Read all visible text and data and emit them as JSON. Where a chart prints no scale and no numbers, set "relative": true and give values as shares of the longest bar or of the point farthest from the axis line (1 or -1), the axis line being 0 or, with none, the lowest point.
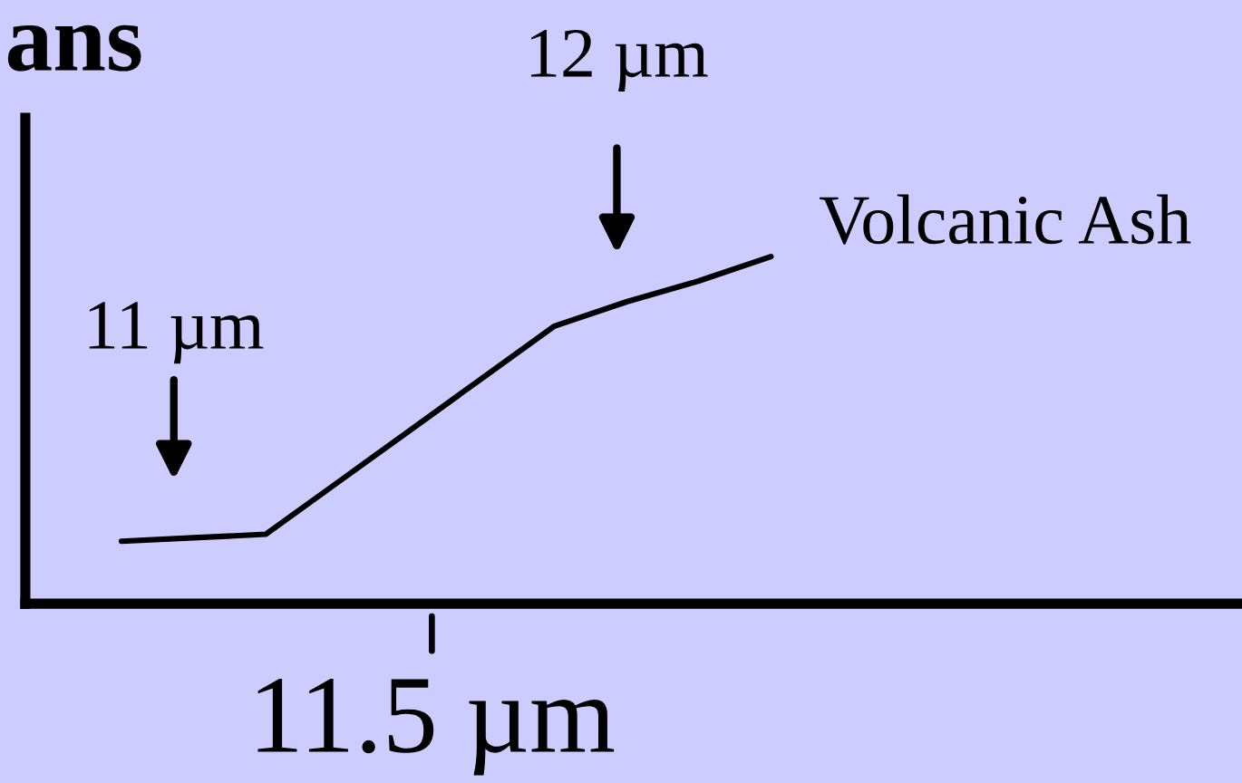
{
  "chart_data": {
    "type": "line",
    "title": "ans",
    "relative": true,
    "categories": [
      null,
      null,
      null,
      null,
      null,
      null,
      null,
      null,
      null,
      null
    ],
    "series": [
      {
        "name": "Volcanic Ash",
        "color": "#000000",
        "values": [
          0.18,
          0.19,
          0.2,
          0.35,
          0.5,
          0.65,
          0.8,
          0.87,
          0.93,
          1
        ]
      }
    ],
    "annotations": [
      "11 µm",
      "12 µm",
      "11.5 µm"
    ],
    "legend": false,
    "marker": "none",
    "line_style": "solid"
  }
}
